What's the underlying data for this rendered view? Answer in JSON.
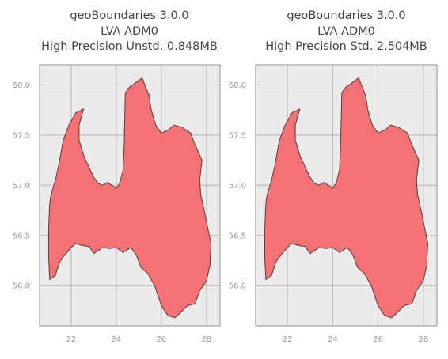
{
  "panels": [
    {
      "title_lines": [
        "geoBoundaries 3.0.0",
        "LVA ADM0",
        "High Precision Unstd. 0.848MB"
      ]
    },
    {
      "title_lines": [
        "geoBoundaries 3.0.0",
        "LVA ADM0",
        "High Precision Std. 2.504MB"
      ]
    }
  ],
  "axes": {
    "x_ticks": [
      22,
      24,
      26,
      28
    ],
    "x_tick_labels": [
      "22",
      "24",
      "26",
      "28"
    ],
    "y_ticks": [
      56.0,
      56.5,
      57.0,
      57.5,
      58.0
    ],
    "y_tick_labels": [
      "56.0",
      "56.5",
      "57.0",
      "57.5",
      "58.0"
    ],
    "xlim": [
      20.6,
      28.6
    ],
    "ylim": [
      55.6,
      58.2
    ]
  },
  "style": {
    "background": "#ebebeb",
    "grid_color": "#b4b4b4",
    "fill_color": "#f47174",
    "edge_color": "#5a3a3a"
  },
  "country_outline_lonlat": [
    [
      21.05,
      56.82
    ],
    [
      21.1,
      56.9
    ],
    [
      21.3,
      57.05
    ],
    [
      21.45,
      57.2
    ],
    [
      21.65,
      57.45
    ],
    [
      21.9,
      57.6
    ],
    [
      22.2,
      57.72
    ],
    [
      22.55,
      57.76
    ],
    [
      22.35,
      57.6
    ],
    [
      22.35,
      57.45
    ],
    [
      22.55,
      57.3
    ],
    [
      22.75,
      57.2
    ],
    [
      23.0,
      57.08
    ],
    [
      23.2,
      57.02
    ],
    [
      23.4,
      57.0
    ],
    [
      23.6,
      57.03
    ],
    [
      23.8,
      57.0
    ],
    [
      24.0,
      56.97
    ],
    [
      24.15,
      57.02
    ],
    [
      24.3,
      57.15
    ],
    [
      24.35,
      57.4
    ],
    [
      24.38,
      57.7
    ],
    [
      24.4,
      57.92
    ],
    [
      24.55,
      57.97
    ],
    [
      24.85,
      58.02
    ],
    [
      25.15,
      58.07
    ],
    [
      25.3,
      57.98
    ],
    [
      25.45,
      57.9
    ],
    [
      25.55,
      57.75
    ],
    [
      25.75,
      57.6
    ],
    [
      26.0,
      57.52
    ],
    [
      26.3,
      57.55
    ],
    [
      26.55,
      57.6
    ],
    [
      26.9,
      57.58
    ],
    [
      27.3,
      57.52
    ],
    [
      27.5,
      57.4
    ],
    [
      27.8,
      57.25
    ],
    [
      27.7,
      57.05
    ],
    [
      27.75,
      56.9
    ],
    [
      27.9,
      56.75
    ],
    [
      28.05,
      56.58
    ],
    [
      28.2,
      56.42
    ],
    [
      28.15,
      56.2
    ],
    [
      28.0,
      56.05
    ],
    [
      27.7,
      55.95
    ],
    [
      27.5,
      55.82
    ],
    [
      27.15,
      55.8
    ],
    [
      26.8,
      55.72
    ],
    [
      26.6,
      55.68
    ],
    [
      26.3,
      55.7
    ],
    [
      26.0,
      55.8
    ],
    [
      25.7,
      56.0
    ],
    [
      25.4,
      56.12
    ],
    [
      25.1,
      56.18
    ],
    [
      24.9,
      56.3
    ],
    [
      24.65,
      56.38
    ],
    [
      24.3,
      56.33
    ],
    [
      24.0,
      56.38
    ],
    [
      23.7,
      56.37
    ],
    [
      23.4,
      56.38
    ],
    [
      23.2,
      56.35
    ],
    [
      23.0,
      56.32
    ],
    [
      22.8,
      56.39
    ],
    [
      22.5,
      56.4
    ],
    [
      22.2,
      56.42
    ],
    [
      22.0,
      56.38
    ],
    [
      21.7,
      56.3
    ],
    [
      21.5,
      56.24
    ],
    [
      21.3,
      56.1
    ],
    [
      21.05,
      56.06
    ],
    [
      21.0,
      56.3
    ],
    [
      21.0,
      56.55
    ]
  ]
}
